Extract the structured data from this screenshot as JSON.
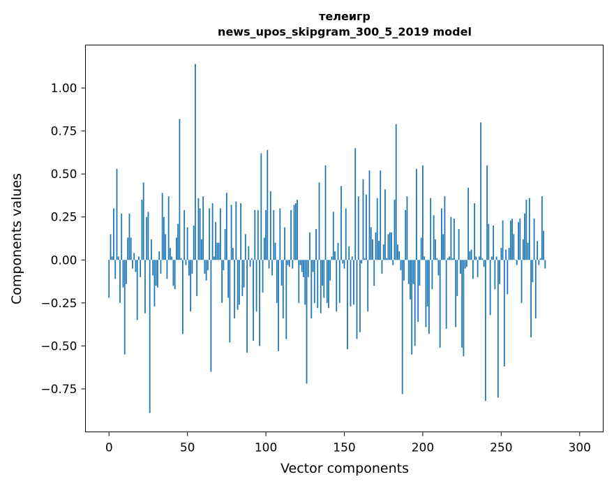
{
  "chart_data": {
    "type": "bar",
    "title": "телеигр",
    "subtitle": "news_upos_skipgram_300_5_2019 model",
    "xlabel": "Vector components",
    "ylabel": "Components values",
    "xlim": [
      -15,
      315
    ],
    "ylim": [
      -1.0,
      1.25
    ],
    "xticks": [
      0,
      50,
      100,
      150,
      200,
      250,
      300
    ],
    "yticks": [
      -0.75,
      -0.5,
      -0.25,
      0.0,
      0.25,
      0.5,
      0.75,
      1.0
    ],
    "ytick_labels": [
      "−0.75",
      "−0.50",
      "−0.25",
      "0.00",
      "0.25",
      "0.50",
      "0.75",
      "1.00"
    ],
    "bar_color": "#1f77b4",
    "grid": false,
    "values": [
      -0.22,
      0.15,
      0.02,
      0.3,
      -0.11,
      0.53,
      0.02,
      -0.25,
      0.27,
      -0.16,
      -0.55,
      -0.14,
      0.13,
      0.27,
      0.13,
      -0.05,
      0.04,
      -0.07,
      -0.35,
      0.02,
      -0.1,
      0.35,
      0.45,
      -0.31,
      0.25,
      0.28,
      -0.89,
      0.12,
      -0.09,
      -0.27,
      -0.15,
      -0.16,
      0.05,
      -0.08,
      0.39,
      0.25,
      0.15,
      -0.11,
      0.37,
      0.07,
      0.02,
      -0.15,
      -0.17,
      0.13,
      0.21,
      0.82,
      0.01,
      -0.43,
      0.29,
      -0.03,
      0.19,
      -0.09,
      -0.3,
      -0.08,
      0.2,
      1.14,
      -0.21,
      0.36,
      0.3,
      0.12,
      0.37,
      -0.08,
      -0.12,
      -0.06,
      0.3,
      -0.65,
      0.33,
      0.02,
      0.22,
      0.1,
      0.1,
      0.3,
      -0.25,
      -0.06,
      0.18,
      0.39,
      -0.22,
      -0.48,
      0.32,
      0.07,
      -0.34,
      0.34,
      -0.29,
      -0.26,
      0.33,
      -0.21,
      -0.16,
      0.15,
      -0.54,
      0.08,
      -0.04,
      0.01,
      -0.47,
      0.29,
      -0.3,
      0.29,
      -0.5,
      0.62,
      -0.19,
      0.13,
      0.29,
      0.64,
      -0.05,
      0.4,
      -0.09,
      0.29,
      0.1,
      -0.25,
      -0.53,
      0.3,
      -0.15,
      -0.34,
      0.19,
      -0.46,
      -0.03,
      -0.04,
      0.29,
      -0.05,
      0.32,
      0.33,
      0.35,
      -0.25,
      -0.03,
      -0.07,
      -0.1,
      -0.26,
      -0.72,
      -0.1,
      0.16,
      -0.34,
      -0.07,
      -0.25,
      0.18,
      -0.28,
      0.45,
      -0.31,
      -0.15,
      -0.22,
      0.55,
      -0.25,
      -0.28,
      -0.12,
      0.02,
      0.28,
      0.05,
      -0.3,
      0.1,
      -0.25,
      0.43,
      -0.02,
      -0.05,
      0.3,
      -0.52,
      0.08,
      -0.27,
      0.02,
      -0.26,
      0.65,
      -0.46,
      0.37,
      -0.42,
      -0.02,
      0.47,
      0.01,
      0.38,
      -0.3,
      0.52,
      0.19,
      0.12,
      -0.15,
      0.16,
      0.36,
      0.11,
      0.52,
      -0.08,
      0.09,
      0.41,
      0.01,
      0.15,
      0.16,
      0.16,
      -0.03,
      0.35,
      0.79,
      0.09,
      0.05,
      -0.06,
      -0.78,
      -0.12,
      0.29,
      0.37,
      -0.14,
      -0.23,
      -0.55,
      -0.14,
      -0.5,
      0.53,
      -0.36,
      -0.15,
      0.13,
      0.55,
      0.02,
      -0.39,
      -0.27,
      -0.43,
      0.36,
      -0.17,
      0.26,
      0.12,
      0.01,
      -0.09,
      -0.51,
      0.3,
      0.15,
      0.37,
      -0.4,
      0.01,
      0.02,
      0.25,
      0.01,
      0.24,
      -0.39,
      -0.21,
      0.18,
      -0.08,
      -0.51,
      -0.56,
      -0.05,
      -0.04,
      0.42,
      0.05,
      0.06,
      -0.11,
      0.33,
      0.02,
      -0.1,
      0.02,
      0.8,
      0.01,
      -0.04,
      -0.82,
      0.55,
      0.21,
      -0.32,
      0.02,
      0.2,
      -0.17,
      0.02,
      -0.8,
      -0.14,
      0.07,
      0.23,
      -0.62,
      0.06,
      -0.2,
      0.07,
      0.23,
      0.24,
      0.15,
      0.0,
      -0.03,
      0.22,
      0.24,
      -0.25,
      0.12,
      0.27,
      0.35,
      0.1,
      0.36,
      -0.45,
      -0.13,
      0.24,
      -0.34,
      0.11,
      -0.03,
      0.01,
      0.37,
      0.17,
      -0.05
    ]
  }
}
